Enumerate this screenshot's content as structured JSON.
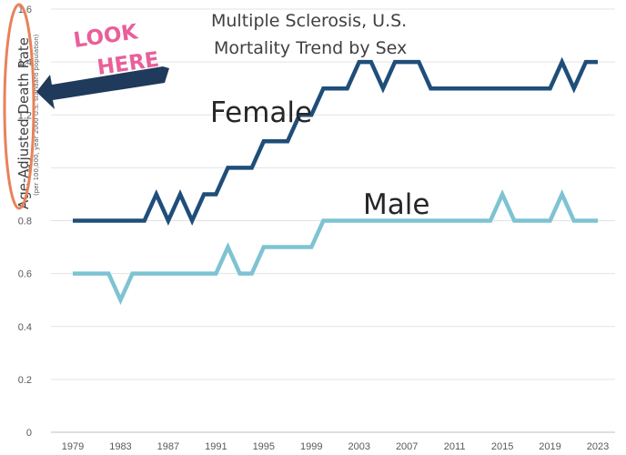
{
  "chart_data": {
    "type": "line",
    "title": [
      "Multiple Sclerosis, U.S.",
      "Mortality Trend by Sex"
    ],
    "ylabel": "Age-Adjusted Death Rate",
    "ylabel_sub": "(per 100,000, year 2000 U.S. standard population)",
    "xlabel": "",
    "x": [
      1979,
      1980,
      1981,
      1982,
      1983,
      1984,
      1985,
      1986,
      1987,
      1988,
      1989,
      1990,
      1991,
      1992,
      1993,
      1994,
      1995,
      1996,
      1997,
      1998,
      1999,
      2000,
      2001,
      2002,
      2003,
      2004,
      2005,
      2006,
      2007,
      2008,
      2009,
      2010,
      2011,
      2012,
      2013,
      2014,
      2015,
      2016,
      2017,
      2018,
      2019,
      2020,
      2021,
      2022,
      2023
    ],
    "xticks": [
      1979,
      1983,
      1987,
      1991,
      1995,
      1999,
      2003,
      2007,
      2011,
      2015,
      2019,
      2023
    ],
    "ylim": [
      0,
      1.6
    ],
    "yticks": [
      0,
      0.2,
      0.4,
      0.6,
      0.8,
      1,
      1.2,
      1.4,
      1.6
    ],
    "ytick_labels": [
      "0",
      "0.2",
      "0.4",
      "0.6",
      "0.8",
      "1",
      "1.2",
      "1.4",
      "1.6"
    ],
    "grid": true,
    "series": [
      {
        "name": "Female",
        "color": "#1f4e79",
        "values": [
          0.8,
          0.8,
          0.8,
          0.8,
          0.8,
          0.8,
          0.8,
          0.9,
          0.8,
          0.9,
          0.8,
          0.9,
          0.9,
          1.0,
          1.0,
          1.0,
          1.1,
          1.1,
          1.1,
          1.2,
          1.2,
          1.3,
          1.3,
          1.3,
          1.4,
          1.4,
          1.3,
          1.4,
          1.4,
          1.4,
          1.3,
          1.3,
          1.3,
          1.3,
          1.3,
          1.3,
          1.3,
          1.3,
          1.3,
          1.3,
          1.3,
          1.4,
          1.3,
          1.4,
          1.4
        ]
      },
      {
        "name": "Male",
        "color": "#7ec3d2",
        "values": [
          0.6,
          0.6,
          0.6,
          0.6,
          0.5,
          0.6,
          0.6,
          0.6,
          0.6,
          0.6,
          0.6,
          0.6,
          0.6,
          0.7,
          0.6,
          0.6,
          0.7,
          0.7,
          0.7,
          0.7,
          0.7,
          0.8,
          0.8,
          0.8,
          0.8,
          0.8,
          0.8,
          0.8,
          0.8,
          0.8,
          0.8,
          0.8,
          0.8,
          0.8,
          0.8,
          0.8,
          0.9,
          0.8,
          0.8,
          0.8,
          0.8,
          0.9,
          0.8,
          0.8,
          0.8
        ]
      }
    ],
    "annotations": {
      "look_here": [
        "LOOK",
        "HERE"
      ],
      "look_color": "#e8609a",
      "arrow_color": "#1f3a5a",
      "circle_color": "#e8825a"
    }
  }
}
